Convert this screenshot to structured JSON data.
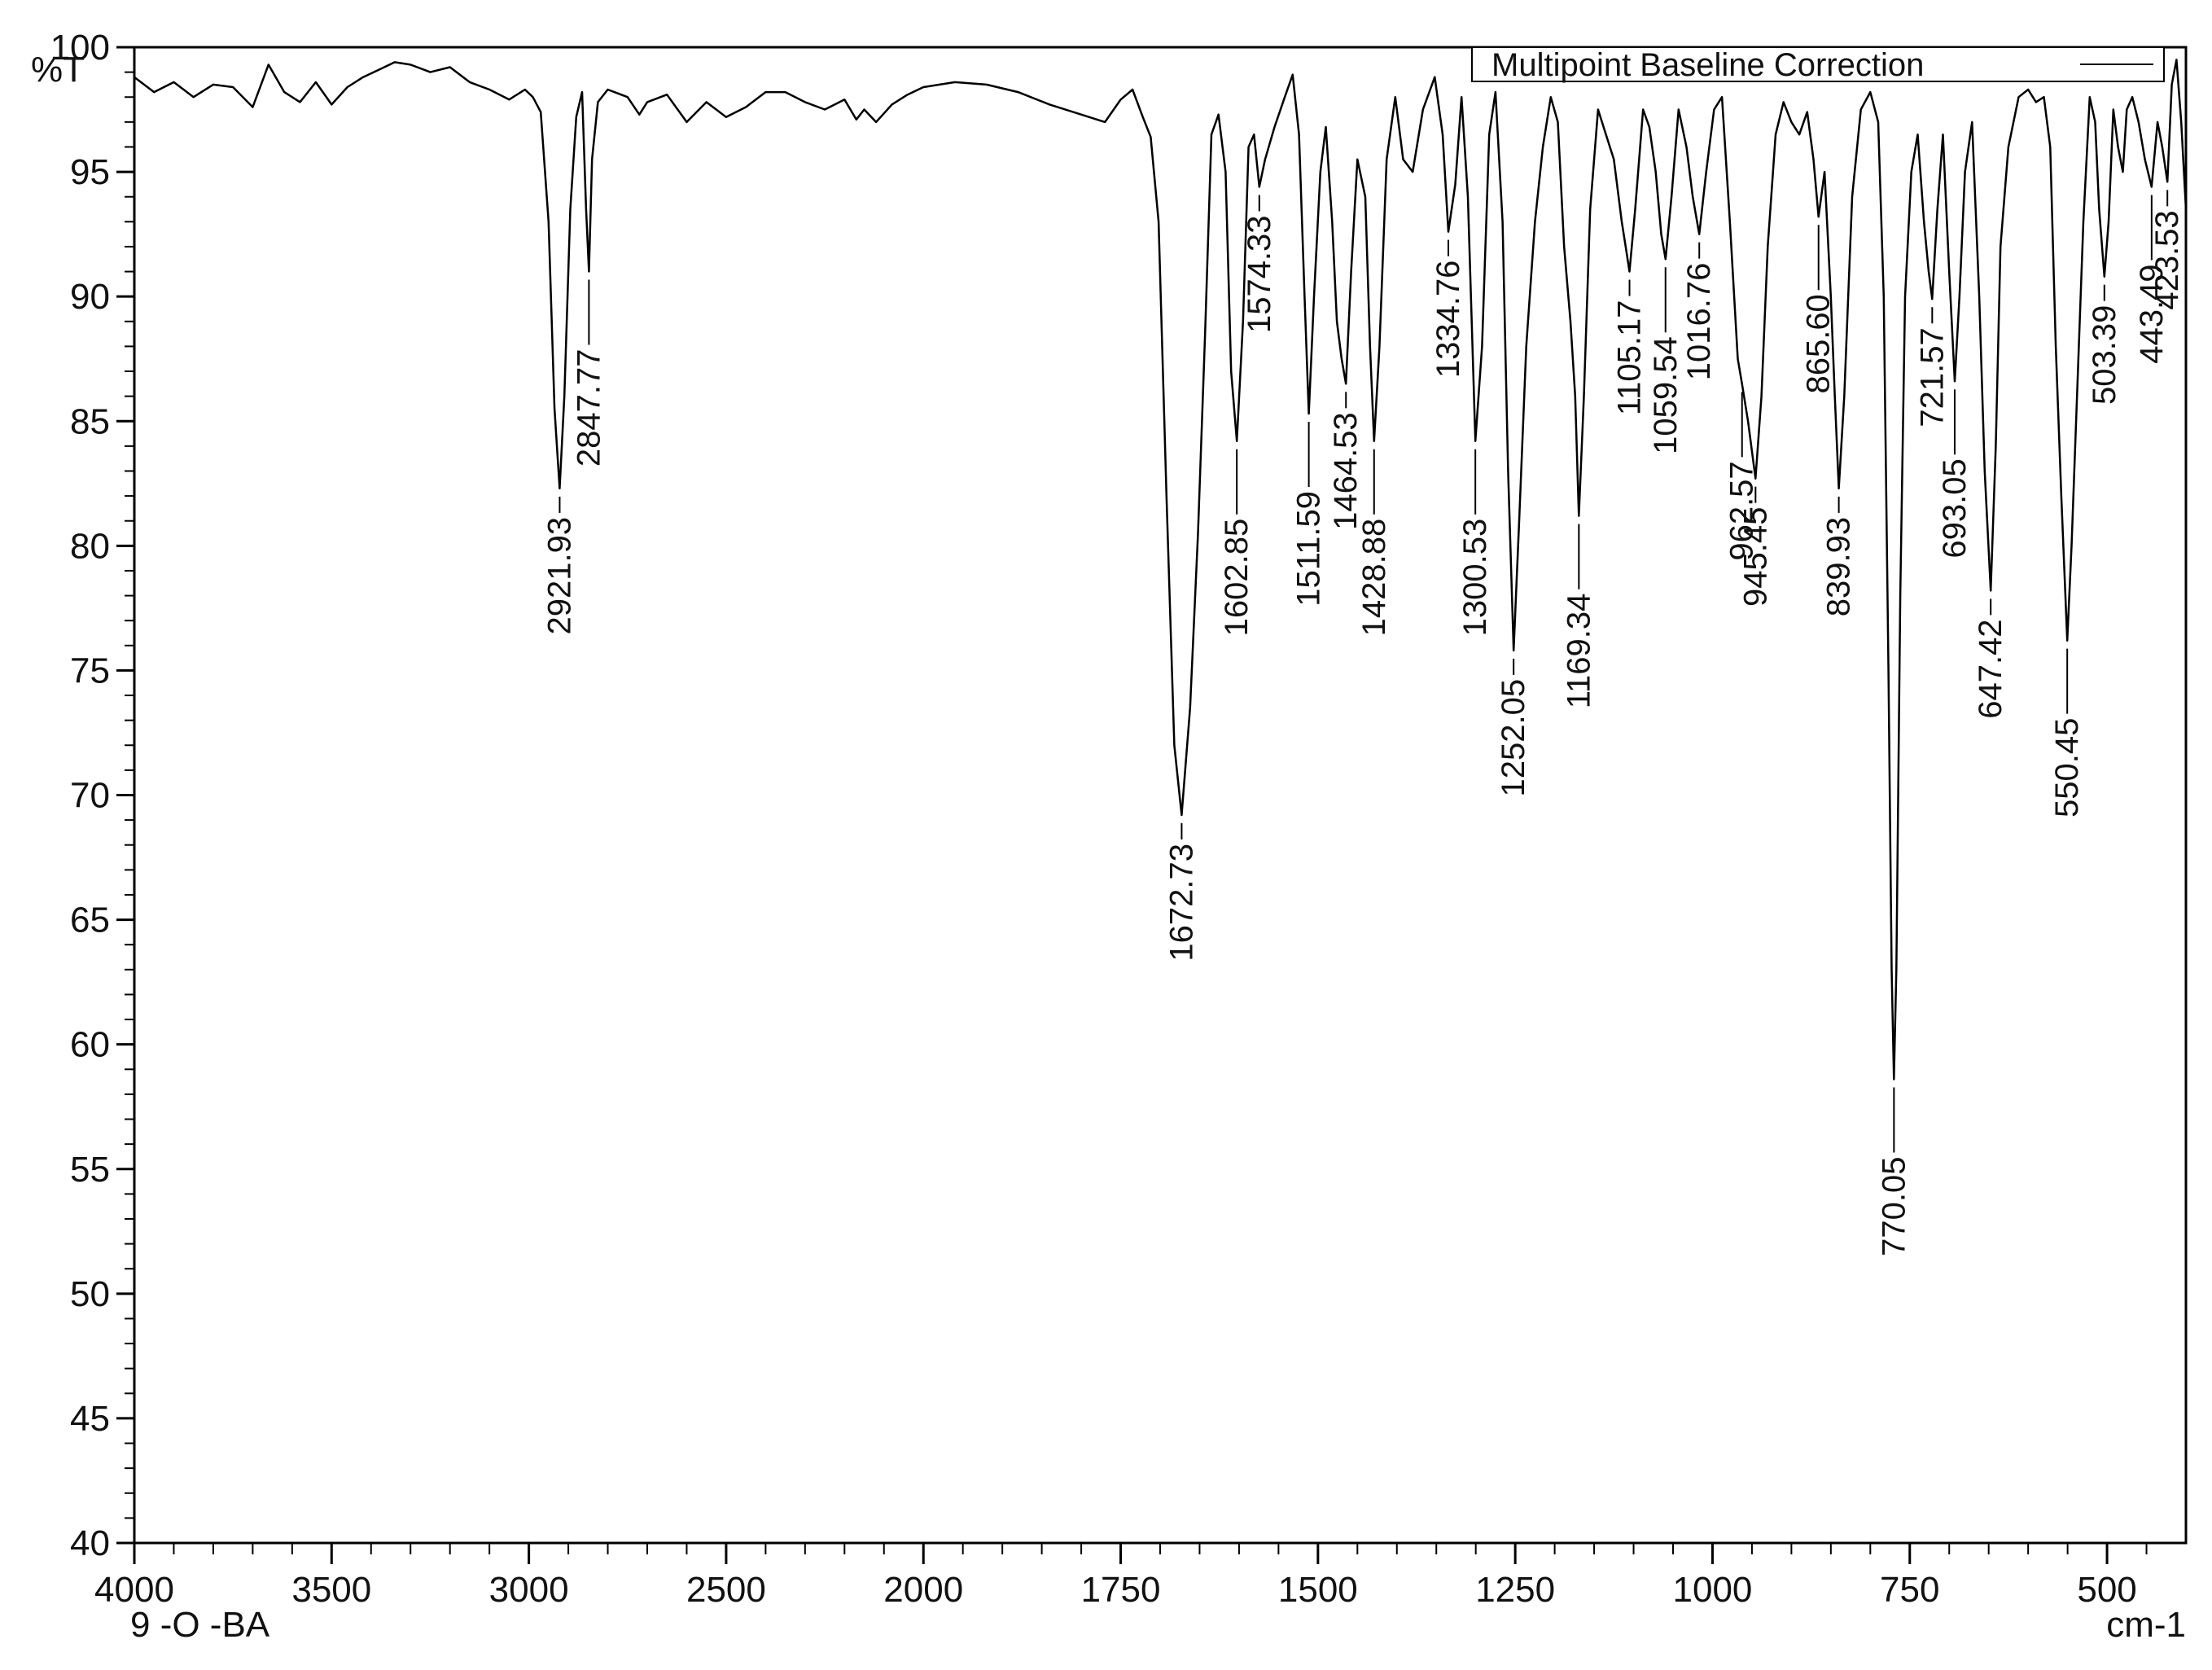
{
  "chart_data": {
    "type": "line",
    "title": "",
    "xlabel": "cm-1",
    "ylabel": "%T",
    "sample_label": "9 -O -BA",
    "xlim": [
      4000,
      400
    ],
    "ylim": [
      40,
      100
    ],
    "x_reversed": true,
    "x_ticks": [
      4000,
      3500,
      3000,
      2500,
      2000,
      1750,
      1500,
      1250,
      1000,
      750,
      500
    ],
    "x_tick_labels": [
      "4000",
      "3500",
      "3000",
      "2500",
      "2000",
      "1750",
      "1500",
      "1250",
      "1000",
      "750",
      "500"
    ],
    "y_ticks": [
      40,
      45,
      50,
      55,
      60,
      65,
      70,
      75,
      80,
      85,
      90,
      95,
      100
    ],
    "y_tick_labels": [
      "40",
      "45",
      "50",
      "55",
      "60",
      "65",
      "70",
      "75",
      "80",
      "85",
      "90",
      "95",
      "100"
    ],
    "legend": {
      "position": "top-right",
      "entries": [
        {
          "name": "Multipoint Baseline Correction",
          "color": "#000000"
        }
      ]
    },
    "grid": false,
    "series": [
      {
        "name": "Multipoint Baseline Correction",
        "color": "#000000",
        "points": [
          [
            4000,
            98.8
          ],
          [
            3950,
            98.2
          ],
          [
            3900,
            98.6
          ],
          [
            3850,
            98.0
          ],
          [
            3800,
            98.5
          ],
          [
            3750,
            98.4
          ],
          [
            3700,
            97.6
          ],
          [
            3660,
            99.3
          ],
          [
            3620,
            98.2
          ],
          [
            3580,
            97.8
          ],
          [
            3540,
            98.6
          ],
          [
            3500,
            97.7
          ],
          [
            3460,
            98.4
          ],
          [
            3420,
            98.8
          ],
          [
            3380,
            99.1
          ],
          [
            3340,
            99.4
          ],
          [
            3300,
            99.3
          ],
          [
            3250,
            99.0
          ],
          [
            3200,
            99.2
          ],
          [
            3150,
            98.6
          ],
          [
            3100,
            98.3
          ],
          [
            3050,
            97.9
          ],
          [
            3010,
            98.3
          ],
          [
            2990,
            98.0
          ],
          [
            2970,
            97.4
          ],
          [
            2950,
            93.0
          ],
          [
            2935,
            85.5
          ],
          [
            2921.93,
            82.3
          ],
          [
            2910,
            86.0
          ],
          [
            2895,
            93.5
          ],
          [
            2880,
            97.2
          ],
          [
            2865,
            98.2
          ],
          [
            2855,
            93.5
          ],
          [
            2847.77,
            91.0
          ],
          [
            2840,
            95.5
          ],
          [
            2825,
            97.8
          ],
          [
            2800,
            98.3
          ],
          [
            2750,
            98.0
          ],
          [
            2720,
            97.3
          ],
          [
            2700,
            97.8
          ],
          [
            2650,
            98.1
          ],
          [
            2600,
            97.0
          ],
          [
            2550,
            97.8
          ],
          [
            2500,
            97.2
          ],
          [
            2450,
            97.6
          ],
          [
            2400,
            98.2
          ],
          [
            2350,
            98.2
          ],
          [
            2300,
            97.8
          ],
          [
            2250,
            97.5
          ],
          [
            2200,
            97.9
          ],
          [
            2170,
            97.1
          ],
          [
            2150,
            97.5
          ],
          [
            2120,
            97.0
          ],
          [
            2080,
            97.7
          ],
          [
            2040,
            98.1
          ],
          [
            2000,
            98.4
          ],
          [
            1960,
            98.6
          ],
          [
            1920,
            98.5
          ],
          [
            1880,
            98.2
          ],
          [
            1840,
            97.7
          ],
          [
            1800,
            97.3
          ],
          [
            1770,
            97.0
          ],
          [
            1750,
            97.9
          ],
          [
            1735,
            98.3
          ],
          [
            1722,
            97.2
          ],
          [
            1712,
            96.4
          ],
          [
            1702,
            93.0
          ],
          [
            1692,
            82.0
          ],
          [
            1682,
            72.0
          ],
          [
            1672.73,
            69.2
          ],
          [
            1662,
            73.5
          ],
          [
            1652,
            80.5
          ],
          [
            1643,
            88.5
          ],
          [
            1635,
            96.5
          ],
          [
            1626,
            97.3
          ],
          [
            1617,
            95.0
          ],
          [
            1610,
            87.0
          ],
          [
            1602.85,
            84.2
          ],
          [
            1595,
            89.0
          ],
          [
            1588,
            96.0
          ],
          [
            1581,
            96.5
          ],
          [
            1574.33,
            94.4
          ],
          [
            1567,
            95.5
          ],
          [
            1555,
            96.8
          ],
          [
            1542,
            98.0
          ],
          [
            1532,
            98.9
          ],
          [
            1524,
            96.5
          ],
          [
            1517,
            90.0
          ],
          [
            1511.59,
            85.3
          ],
          [
            1505,
            90.0
          ],
          [
            1497,
            95.0
          ],
          [
            1490,
            96.8
          ],
          [
            1482,
            93.0
          ],
          [
            1476,
            89.0
          ],
          [
            1470,
            87.5
          ],
          [
            1464.53,
            86.5
          ],
          [
            1458,
            91.0
          ],
          [
            1450,
            95.5
          ],
          [
            1440,
            94.0
          ],
          [
            1434,
            88.0
          ],
          [
            1428.88,
            84.2
          ],
          [
            1422,
            88.0
          ],
          [
            1413,
            95.5
          ],
          [
            1402,
            98.0
          ],
          [
            1392,
            95.5
          ],
          [
            1380,
            95.0
          ],
          [
            1367,
            97.5
          ],
          [
            1352,
            98.8
          ],
          [
            1342,
            96.5
          ],
          [
            1334.76,
            92.6
          ],
          [
            1326,
            94.5
          ],
          [
            1318,
            98.0
          ],
          [
            1310,
            94.0
          ],
          [
            1300.53,
            84.2
          ],
          [
            1292,
            88.0
          ],
          [
            1283,
            96.5
          ],
          [
            1275,
            98.2
          ],
          [
            1266,
            93.0
          ],
          [
            1259,
            83.0
          ],
          [
            1252.05,
            75.8
          ],
          [
            1245,
            81.0
          ],
          [
            1236,
            88.0
          ],
          [
            1225,
            93.0
          ],
          [
            1215,
            96.0
          ],
          [
            1205,
            98.0
          ],
          [
            1196,
            97.0
          ],
          [
            1188,
            92.0
          ],
          [
            1180,
            89.0
          ],
          [
            1174,
            86.0
          ],
          [
            1169.34,
            81.2
          ],
          [
            1163,
            86.0
          ],
          [
            1155,
            93.5
          ],
          [
            1145,
            97.5
          ],
          [
            1135,
            96.5
          ],
          [
            1125,
            95.5
          ],
          [
            1115,
            93.0
          ],
          [
            1110,
            92.0
          ],
          [
            1105.17,
            91.0
          ],
          [
            1098,
            93.5
          ],
          [
            1088,
            97.5
          ],
          [
            1080,
            96.8
          ],
          [
            1072,
            95.0
          ],
          [
            1065,
            92.5
          ],
          [
            1059.54,
            91.5
          ],
          [
            1052,
            94.0
          ],
          [
            1043,
            97.5
          ],
          [
            1033,
            96.0
          ],
          [
            1025,
            94.0
          ],
          [
            1016.76,
            92.5
          ],
          [
            1008,
            95.0
          ],
          [
            998,
            97.5
          ],
          [
            988,
            98.0
          ],
          [
            978,
            93.0
          ],
          [
            968,
            87.5
          ],
          [
            962.57,
            86.5
          ],
          [
            955,
            85.0
          ],
          [
            945.45,
            82.7
          ],
          [
            938,
            86.0
          ],
          [
            930,
            92.0
          ],
          [
            920,
            96.5
          ],
          [
            910,
            97.8
          ],
          [
            900,
            97.0
          ],
          [
            890,
            96.5
          ],
          [
            880,
            97.4
          ],
          [
            872,
            95.5
          ],
          [
            865.6,
            93.2
          ],
          [
            858,
            95.0
          ],
          [
            850,
            90.0
          ],
          [
            845,
            86.0
          ],
          [
            839.93,
            82.3
          ],
          [
            833,
            86.0
          ],
          [
            823,
            94.0
          ],
          [
            812,
            97.5
          ],
          [
            800,
            98.2
          ],
          [
            790,
            97.0
          ],
          [
            783,
            90.0
          ],
          [
            777,
            75.0
          ],
          [
            773,
            63.0
          ],
          [
            770.05,
            58.6
          ],
          [
            767,
            63.0
          ],
          [
            762,
            78.0
          ],
          [
            756,
            90.0
          ],
          [
            748,
            95.0
          ],
          [
            740,
            96.5
          ],
          [
            732,
            93.0
          ],
          [
            726,
            91.0
          ],
          [
            721.57,
            89.9
          ],
          [
            715,
            93.5
          ],
          [
            708,
            96.5
          ],
          [
            700,
            91.0
          ],
          [
            693.05,
            86.6
          ],
          [
            687,
            90.0
          ],
          [
            680,
            95.0
          ],
          [
            671,
            97.0
          ],
          [
            662,
            90.0
          ],
          [
            655,
            83.0
          ],
          [
            647.42,
            78.2
          ],
          [
            641,
            84.0
          ],
          [
            635,
            92.0
          ],
          [
            625,
            96.0
          ],
          [
            612,
            98.0
          ],
          [
            600,
            98.3
          ],
          [
            590,
            97.8
          ],
          [
            580,
            98.0
          ],
          [
            572,
            96.0
          ],
          [
            565,
            88.0
          ],
          [
            558,
            82.0
          ],
          [
            550.45,
            76.2
          ],
          [
            545,
            80.0
          ],
          [
            538,
            86.0
          ],
          [
            530,
            93.0
          ],
          [
            522,
            98.0
          ],
          [
            515,
            97.0
          ],
          [
            510,
            93.5
          ],
          [
            503.39,
            90.8
          ],
          [
            498,
            93.0
          ],
          [
            492,
            97.5
          ],
          [
            486,
            96.0
          ],
          [
            480,
            95.0
          ],
          [
            475,
            97.5
          ],
          [
            468,
            98.0
          ],
          [
            460,
            97.0
          ],
          [
            452,
            95.5
          ],
          [
            443.49,
            94.4
          ],
          [
            436,
            97.0
          ],
          [
            430,
            96.0
          ],
          [
            423.53,
            94.6
          ],
          [
            418,
            98.5
          ],
          [
            412,
            99.5
          ],
          [
            406,
            97.0
          ],
          [
            400,
            93.5
          ]
        ]
      }
    ],
    "annotations": [
      {
        "text": "2921.93",
        "x": 2921.93,
        "y": 82.3
      },
      {
        "text": "2847.77",
        "x": 2847.77,
        "y": 91.0
      },
      {
        "text": "1672.73",
        "x": 1672.73,
        "y": 69.2
      },
      {
        "text": "1602.85",
        "x": 1602.85,
        "y": 84.2
      },
      {
        "text": "1574.33",
        "x": 1574.33,
        "y": 94.4
      },
      {
        "text": "1511.59",
        "x": 1511.59,
        "y": 85.3
      },
      {
        "text": "1464.53",
        "x": 1464.53,
        "y": 86.5
      },
      {
        "text": "1428.88",
        "x": 1428.88,
        "y": 84.2
      },
      {
        "text": "1334.76",
        "x": 1334.76,
        "y": 92.6
      },
      {
        "text": "1300.53",
        "x": 1300.53,
        "y": 84.2
      },
      {
        "text": "1252.05",
        "x": 1252.05,
        "y": 75.8
      },
      {
        "text": "1169.34",
        "x": 1169.34,
        "y": 81.2
      },
      {
        "text": "1105.17",
        "x": 1105.17,
        "y": 91.0
      },
      {
        "text": "1059.54",
        "x": 1059.54,
        "y": 91.5
      },
      {
        "text": "1016.76",
        "x": 1016.76,
        "y": 92.5
      },
      {
        "text": "962.57",
        "x": 962.57,
        "y": 86.5
      },
      {
        "text": "945.45",
        "x": 945.45,
        "y": 82.7
      },
      {
        "text": "865.60",
        "x": 865.6,
        "y": 93.2
      },
      {
        "text": "839.93",
        "x": 839.93,
        "y": 82.3
      },
      {
        "text": "770.05",
        "x": 770.05,
        "y": 58.6
      },
      {
        "text": "721.57",
        "x": 721.57,
        "y": 89.9
      },
      {
        "text": "693.05",
        "x": 693.05,
        "y": 86.6
      },
      {
        "text": "647.42",
        "x": 647.42,
        "y": 78.2
      },
      {
        "text": "550.45",
        "x": 550.45,
        "y": 76.2
      },
      {
        "text": "503.39",
        "x": 503.39,
        "y": 90.8
      },
      {
        "text": "443.49",
        "x": 443.49,
        "y": 94.4
      },
      {
        "text": "423.53",
        "x": 423.53,
        "y": 94.6
      }
    ]
  }
}
